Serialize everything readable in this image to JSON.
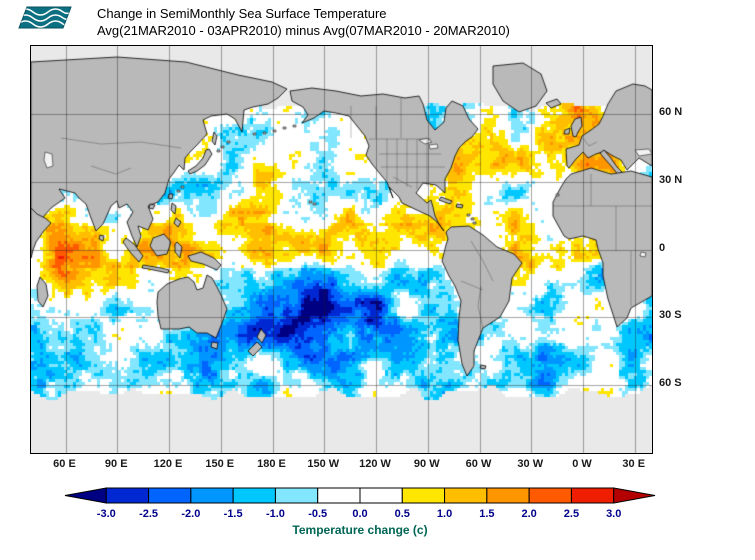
{
  "header": {
    "title": "Change in SemiMonthly Sea Surface Temperature",
    "subtitle": "Avg(21MAR2010 - 03APR2010) minus Avg(07MAR2010 - 20MAR2010)",
    "logo": {
      "color": "#0c6f82",
      "wave_color": "#ffffff"
    }
  },
  "map": {
    "lat_labels": [
      "60 N",
      "30 N",
      "0",
      "30 S",
      "60 S"
    ],
    "lon_labels": [
      "60 E",
      "90 E",
      "120 E",
      "150 E",
      "180 E",
      "150 W",
      "120 W",
      "90 W",
      "60 W",
      "30 W",
      "0 W",
      "30 E"
    ],
    "land_color": "#b9b9b9",
    "coast_color": "#000000",
    "ice_color": "#e9e9e9",
    "lake_color": "#f2f2f2",
    "grid_color": "rgba(30,30,30,0.5)"
  },
  "colorbar": {
    "label": "Temperature change (c)",
    "ticks": [
      "-3.0",
      "-2.5",
      "-2.0",
      "-1.5",
      "-1.0",
      "-0.5",
      "0.0",
      "0.5",
      "1.0",
      "1.5",
      "2.0",
      "2.5",
      "3.0"
    ],
    "palette": [
      "#000082",
      "#0028d2",
      "#0064ff",
      "#0096ff",
      "#00c8ff",
      "#82e6ff",
      "#ffffff",
      "#ffffff",
      "#ffe600",
      "#ffbe00",
      "#ff9600",
      "#ff5a00",
      "#f01e00",
      "#b40000"
    ],
    "tick_color": "#00008b",
    "label_color": "#006655",
    "range": [
      -3.0,
      3.0
    ],
    "step": 0.5
  },
  "chart_data": {
    "type": "heatmap",
    "title": "Change in SemiMonthly Sea Surface Temperature",
    "subtitle": "Avg(21MAR2010 - 03APR2010) minus Avg(07MAR2010 - 20MAR2010)",
    "value_label": "Temperature change (c)",
    "scale_ticks": [
      -3.0,
      -2.5,
      -2.0,
      -1.5,
      -1.0,
      -0.5,
      0.0,
      0.5,
      1.0,
      1.5,
      2.0,
      2.5,
      3.0
    ],
    "lon_ticks": [
      "60 E",
      "90 E",
      "120 E",
      "150 E",
      "180 E",
      "150 W",
      "120 W",
      "90 W",
      "60 W",
      "30 W",
      "0 W",
      "30 E"
    ],
    "lat_ticks": [
      "60 N",
      "30 N",
      "0",
      "30 S",
      "60 S"
    ]
  }
}
